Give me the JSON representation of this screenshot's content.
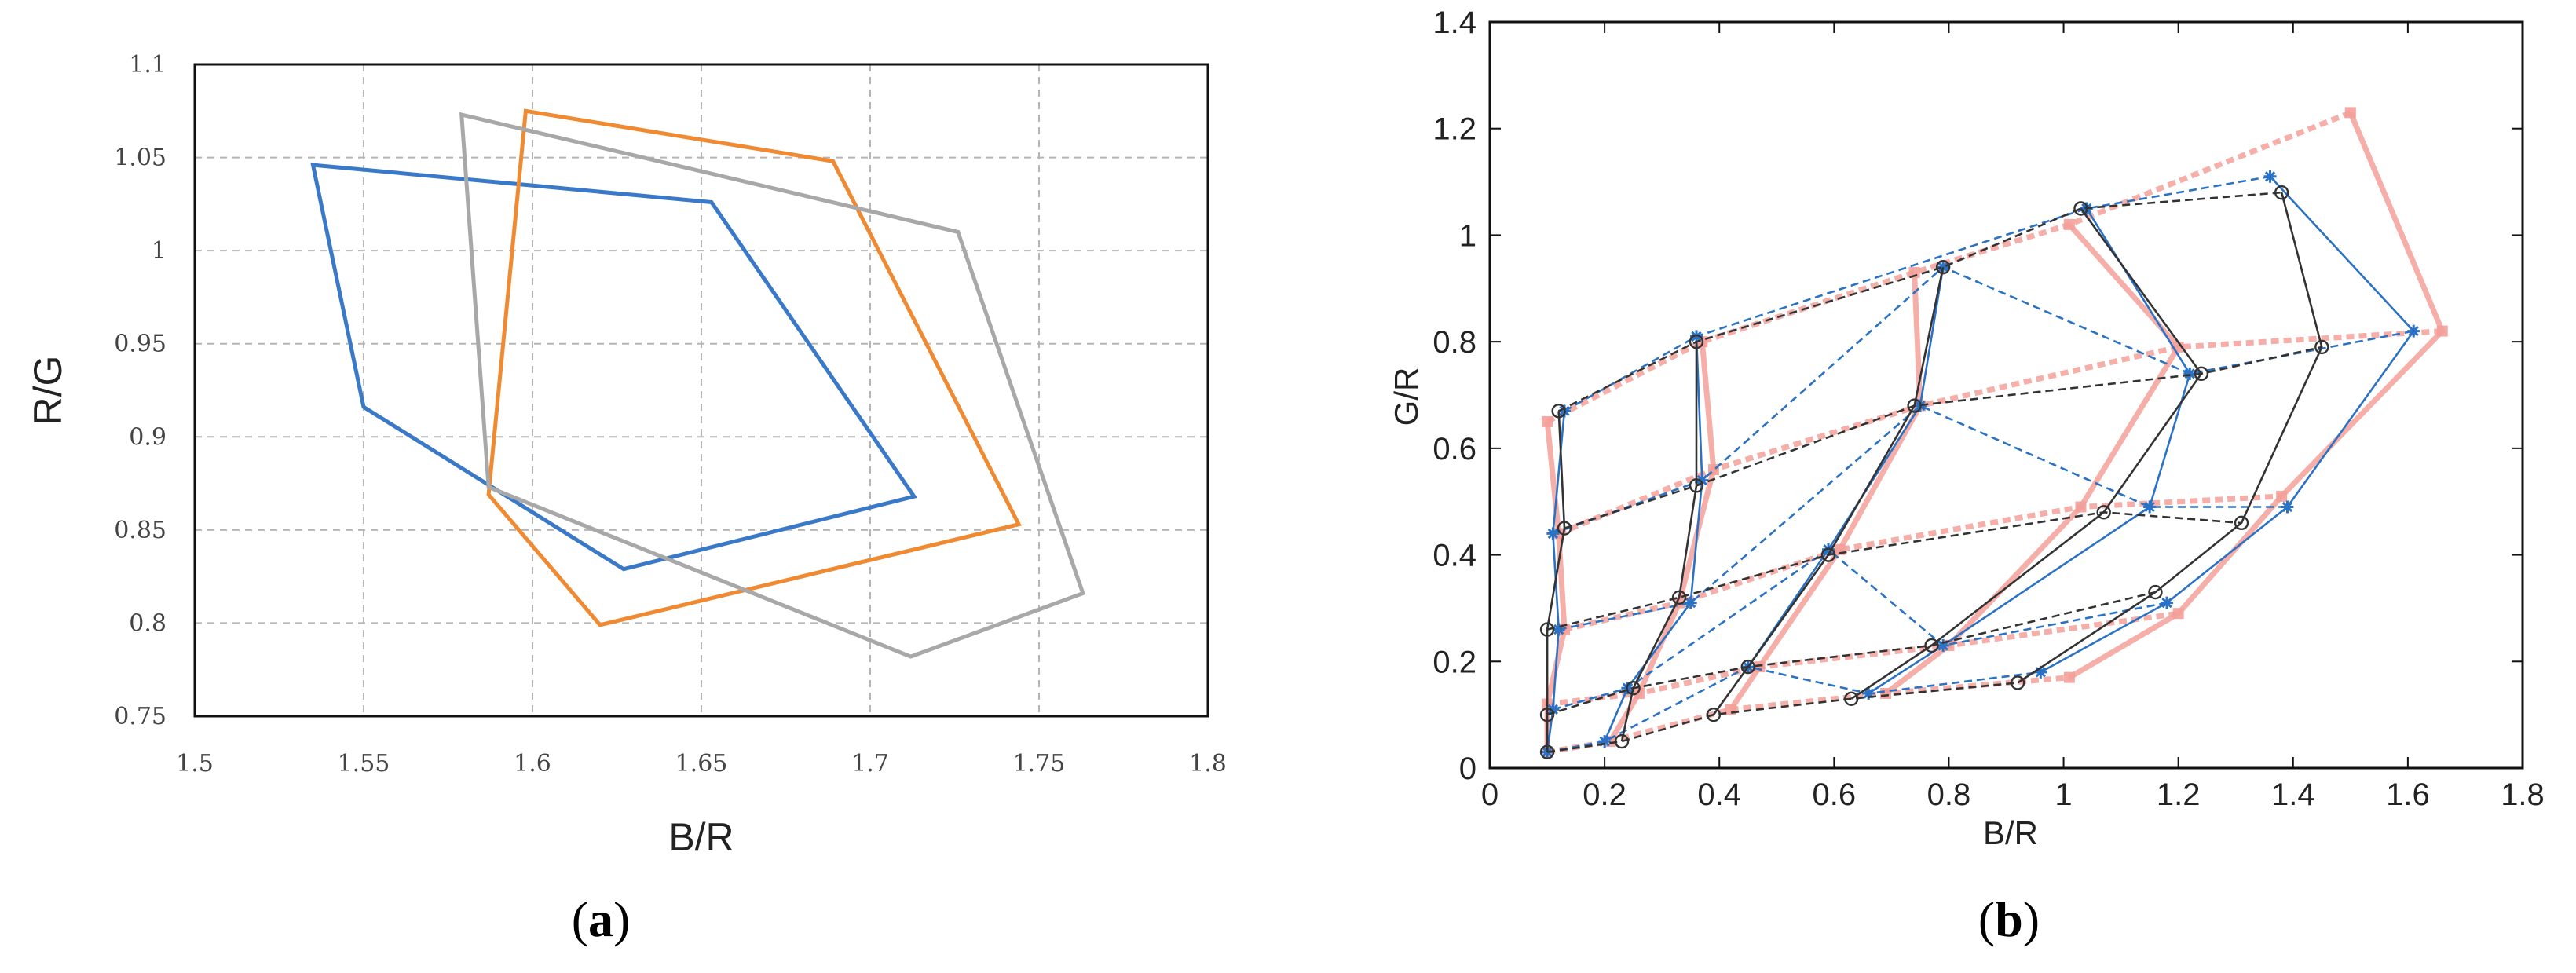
{
  "chart_data": [
    {
      "panel_label": "a",
      "type": "line",
      "xlabel": "B/R",
      "ylabel": "R/G",
      "xlim": [
        1.5,
        1.8
      ],
      "ylim": [
        0.75,
        1.1
      ],
      "x_ticks": [
        "1.5",
        "1.55",
        "1.6",
        "1.65",
        "1.7",
        "1.75",
        "1.8"
      ],
      "y_ticks": [
        "0.75",
        "0.8",
        "0.85",
        "0.9",
        "0.95",
        "1",
        "1.05",
        "1.1"
      ],
      "grid": true,
      "series": [
        {
          "color": "#3a78c8",
          "closed": true,
          "points": [
            [
              1.535,
              1.046
            ],
            [
              1.653,
              1.026
            ],
            [
              1.713,
              0.868
            ],
            [
              1.627,
              0.829
            ],
            [
              1.55,
              0.916
            ]
          ]
        },
        {
          "color": "#f08a32",
          "closed": true,
          "points": [
            [
              1.598,
              1.075
            ],
            [
              1.689,
              1.048
            ],
            [
              1.744,
              0.853
            ],
            [
              1.62,
              0.799
            ],
            [
              1.587,
              0.869
            ]
          ]
        },
        {
          "color": "#a8a8a8",
          "closed": true,
          "points": [
            [
              1.579,
              1.073
            ],
            [
              1.726,
              1.01
            ],
            [
              1.763,
              0.816
            ],
            [
              1.712,
              0.782
            ],
            [
              1.587,
              0.873
            ]
          ]
        }
      ]
    },
    {
      "panel_label": "b",
      "type": "line",
      "xlabel": "B/R",
      "ylabel": "G/R",
      "xlim": [
        0,
        1.8
      ],
      "ylim": [
        0,
        1.4
      ],
      "x_ticks": [
        "0",
        "0.2",
        "0.4",
        "0.6",
        "0.8",
        "1",
        "1.2",
        "1.4",
        "1.6",
        "1.8"
      ],
      "y_ticks": [
        "0",
        "0.2",
        "0.4",
        "0.6",
        "0.8",
        "1",
        "1.2",
        "1.4"
      ],
      "grid": false,
      "series": [
        {
          "color": "#f4a09a",
          "marker": "square",
          "grid_nodes": [
            [
              [
                0.1,
                0.03
              ],
              [
                0.1,
                0.12
              ],
              [
                0.13,
                0.26
              ],
              [
                0.12,
                0.44
              ],
              [
                0.1,
                0.65
              ]
            ],
            [
              [
                0.21,
                0.05
              ],
              [
                0.26,
                0.14
              ],
              [
                0.33,
                0.31
              ],
              [
                0.39,
                0.56
              ],
              [
                0.37,
                0.8
              ]
            ],
            [
              [
                0.42,
                0.11
              ],
              [
                0.47,
                0.19
              ],
              [
                0.61,
                0.41
              ],
              [
                0.75,
                0.68
              ],
              [
                0.74,
                0.93
              ]
            ],
            [
              [
                0.69,
                0.14
              ],
              [
                0.8,
                0.23
              ],
              [
                1.03,
                0.49
              ],
              [
                1.2,
                0.79
              ],
              [
                1.01,
                1.02
              ]
            ],
            [
              [
                1.01,
                0.17
              ],
              [
                1.2,
                0.29
              ],
              [
                1.38,
                0.51
              ],
              [
                1.66,
                0.82
              ],
              [
                1.5,
                1.23
              ]
            ]
          ]
        },
        {
          "color": "#2b72c4",
          "marker": "star",
          "grid_nodes": [
            [
              [
                0.1,
                0.03
              ],
              [
                0.11,
                0.11
              ],
              [
                0.12,
                0.26
              ],
              [
                0.11,
                0.44
              ],
              [
                0.13,
                0.67
              ]
            ],
            [
              [
                0.2,
                0.05
              ],
              [
                0.24,
                0.15
              ],
              [
                0.35,
                0.31
              ],
              [
                0.37,
                0.54
              ],
              [
                0.36,
                0.81
              ]
            ],
            [
              [
                0.45,
                0.19
              ],
              [
                0.59,
                0.41
              ],
              [
                0.75,
                0.68
              ],
              [
                0.79,
                0.94
              ]
            ],
            [
              [
                0.66,
                0.14
              ],
              [
                0.79,
                0.23
              ],
              [
                1.15,
                0.49
              ],
              [
                1.22,
                0.74
              ],
              [
                1.04,
                1.05
              ]
            ],
            [
              [
                0.96,
                0.18
              ],
              [
                1.18,
                0.31
              ],
              [
                1.39,
                0.49
              ],
              [
                1.61,
                0.82
              ],
              [
                1.36,
                1.11
              ]
            ]
          ]
        },
        {
          "color": "#333333",
          "marker": "circle",
          "grid_nodes": [
            [
              [
                0.1,
                0.03
              ],
              [
                0.1,
                0.1
              ],
              [
                0.1,
                0.26
              ],
              [
                0.13,
                0.45
              ],
              [
                0.12,
                0.67
              ]
            ],
            [
              [
                0.23,
                0.05
              ],
              [
                0.25,
                0.15
              ],
              [
                0.33,
                0.32
              ],
              [
                0.36,
                0.53
              ],
              [
                0.36,
                0.8
              ]
            ],
            [
              [
                0.39,
                0.1
              ],
              [
                0.45,
                0.19
              ],
              [
                0.59,
                0.4
              ],
              [
                0.74,
                0.68
              ],
              [
                0.79,
                0.94
              ]
            ],
            [
              [
                0.63,
                0.13
              ],
              [
                0.77,
                0.23
              ],
              [
                1.07,
                0.48
              ],
              [
                1.24,
                0.74
              ],
              [
                1.03,
                1.05
              ]
            ],
            [
              [
                0.92,
                0.16
              ],
              [
                1.16,
                0.33
              ],
              [
                1.31,
                0.46
              ],
              [
                1.45,
                0.79
              ],
              [
                1.38,
                1.08
              ]
            ]
          ]
        }
      ]
    }
  ],
  "captions": [
    {
      "open": "(",
      "letter": "a",
      "close": ")"
    },
    {
      "open": "(",
      "letter": "b",
      "close": ")"
    }
  ]
}
